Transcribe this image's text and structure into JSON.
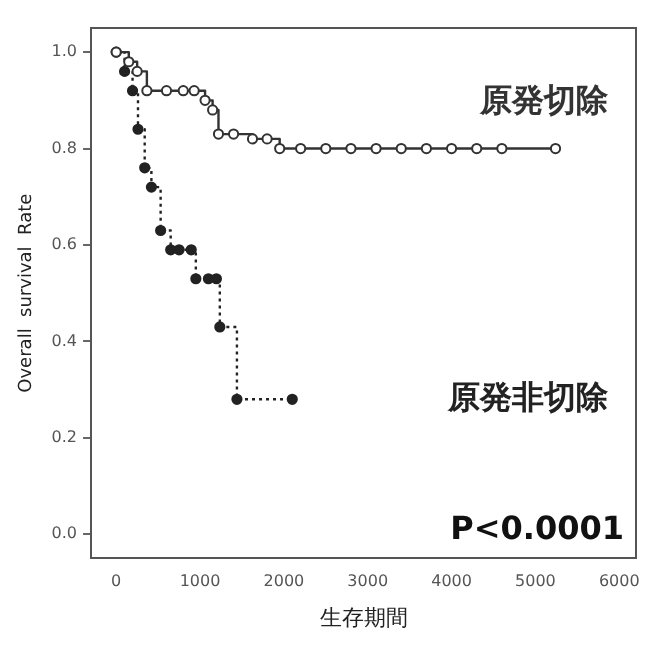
{
  "chart_data": {
    "type": "step",
    "xlabel": "生存期間",
    "ylabel": "Overall  survival  Rate",
    "xlim": [
      -300,
      6200
    ],
    "xticks": [
      0,
      1000,
      2000,
      3000,
      4000,
      5000,
      6000
    ],
    "ylim": [
      -0.05,
      1.05
    ],
    "yticks": [
      {
        "value": 0,
        "label": "0.0"
      },
      {
        "value": 0.2,
        "label": "0.2"
      },
      {
        "value": 0.4,
        "label": "0.4"
      },
      {
        "value": 0.6,
        "label": "0.6"
      },
      {
        "value": 0.8,
        "label": "0.8"
      },
      {
        "value": 1,
        "label": "1.0"
      }
    ],
    "grid": false,
    "legend": false,
    "marker": "circle",
    "series": [
      {
        "name": "原発切除",
        "color": "#333333",
        "line_style": "solid",
        "x": [
          0,
          150,
          250,
          366,
          600,
          800,
          930,
          1060,
          1150,
          1220,
          1400,
          1626,
          1800,
          1950,
          2200,
          2500,
          2800,
          3100,
          3400,
          3700,
          4000,
          4300,
          4600,
          5240
        ],
        "values": [
          1.0,
          0.98,
          0.96,
          0.92,
          0.92,
          0.92,
          0.92,
          0.9,
          0.88,
          0.83,
          0.83,
          0.82,
          0.82,
          0.8,
          0.8,
          0.8,
          0.8,
          0.8,
          0.8,
          0.8,
          0.8,
          0.8,
          0.8,
          0.8
        ]
      },
      {
        "name": "原発非切除",
        "color": "#222222",
        "line_style": "dotted",
        "x": [
          0,
          100,
          195,
          260,
          340,
          420,
          530,
          650,
          750,
          895,
          950,
          1100,
          1195,
          1236,
          1440,
          2100
        ],
        "values": [
          1.0,
          0.96,
          0.92,
          0.84,
          0.76,
          0.72,
          0.63,
          0.59,
          0.59,
          0.59,
          0.53,
          0.53,
          0.53,
          0.43,
          0.28,
          0.28
        ]
      }
    ],
    "annotations": [
      "P<0.0001"
    ]
  }
}
